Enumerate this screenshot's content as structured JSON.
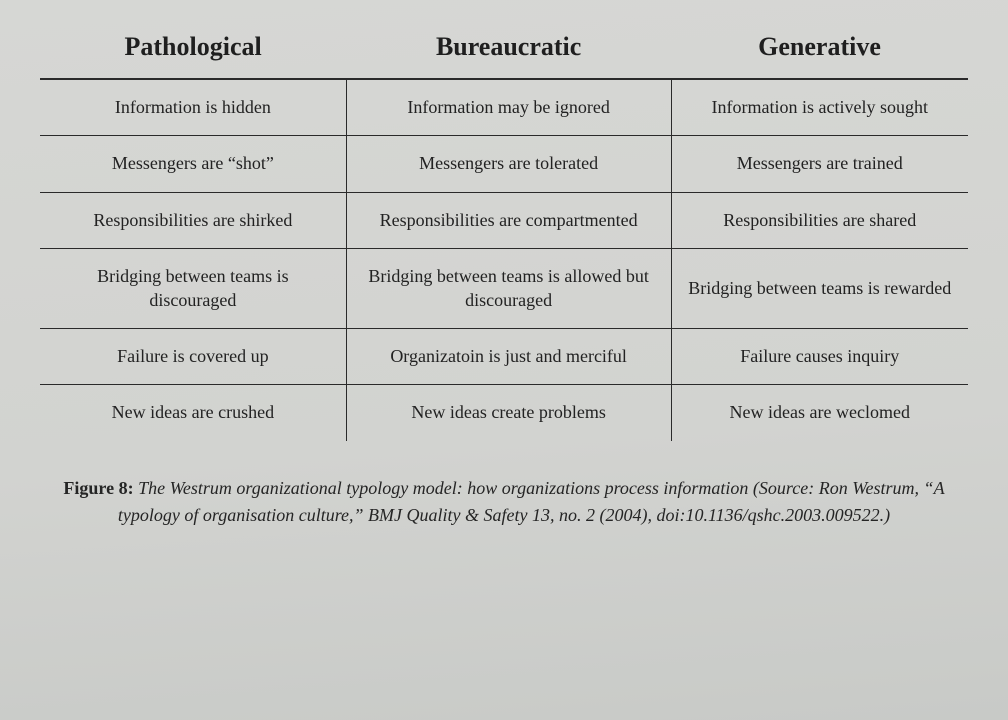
{
  "table": {
    "type": "table",
    "columns": [
      {
        "label": "Pathological",
        "width_pct": 33,
        "align": "center"
      },
      {
        "label": "Bureaucratic",
        "width_pct": 35,
        "align": "center"
      },
      {
        "label": "Generative",
        "width_pct": 32,
        "align": "center"
      }
    ],
    "rows": [
      [
        "Information is hidden",
        "Information may be ignored",
        "Information is actively sought"
      ],
      [
        "Messengers are “shot”",
        "Messengers are tolerated",
        "Messengers are trained"
      ],
      [
        "Responsibilities are shirked",
        "Responsibilities are compartmented",
        "Responsibilities are shared"
      ],
      [
        "Bridging between teams is discouraged",
        "Bridging between teams is allowed but discouraged",
        "Bridging between teams is rewarded"
      ],
      [
        "Failure is covered up",
        "Organizatoin is just and merciful",
        "Failure causes inquiry"
      ],
      [
        "New ideas are crushed",
        "New ideas create problems",
        "New ideas are weclomed"
      ]
    ],
    "header_fontsize": 26,
    "cell_fontsize": 18,
    "header_border_width": 2,
    "row_border_width": 1,
    "border_color": "#2a2a2a",
    "background_color": "#d4d5d2",
    "text_color": "#222222"
  },
  "caption": {
    "label": "Figure 8:",
    "text": " The Westrum organizational typology model: how organizations process information (Source: Ron Westrum, “A typology of organisation culture,” BMJ Quality & Safety 13, no. 2 (2004), doi:10.1136/qshc.2003.009522.)",
    "fontsize": 18,
    "font_style": "italic",
    "label_weight": "bold"
  }
}
